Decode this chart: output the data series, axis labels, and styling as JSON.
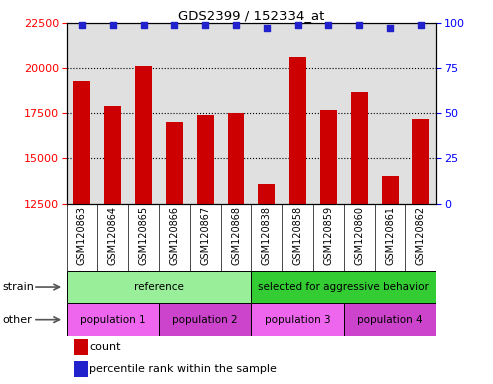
{
  "title": "GDS2399 / 152334_at",
  "samples": [
    "GSM120863",
    "GSM120864",
    "GSM120865",
    "GSM120866",
    "GSM120867",
    "GSM120868",
    "GSM120838",
    "GSM120858",
    "GSM120859",
    "GSM120860",
    "GSM120861",
    "GSM120862"
  ],
  "counts": [
    19300,
    17900,
    20100,
    17000,
    17400,
    17500,
    13600,
    20600,
    17700,
    18700,
    14000,
    17200
  ],
  "percentile_ranks": [
    99,
    99,
    99,
    99,
    99,
    99,
    97,
    99,
    99,
    99,
    97,
    99
  ],
  "ylim": [
    12500,
    22500
  ],
  "yticks": [
    12500,
    15000,
    17500,
    20000,
    22500
  ],
  "right_yticks": [
    0,
    25,
    50,
    75,
    100
  ],
  "right_ylim": [
    0,
    100
  ],
  "bar_color": "#cc0000",
  "dot_color": "#2222cc",
  "plot_bg_color": "#e0e0e0",
  "xlabel_bg_color": "#c8c8c8",
  "strain_groups": [
    {
      "label": "reference",
      "start": 0,
      "end": 6,
      "color": "#99ee99"
    },
    {
      "label": "selected for aggressive behavior",
      "start": 6,
      "end": 12,
      "color": "#33cc33"
    }
  ],
  "other_groups": [
    {
      "label": "population 1",
      "start": 0,
      "end": 3,
      "color": "#ee66ee"
    },
    {
      "label": "population 2",
      "start": 3,
      "end": 6,
      "color": "#cc44cc"
    },
    {
      "label": "population 3",
      "start": 6,
      "end": 9,
      "color": "#ee66ee"
    },
    {
      "label": "population 4",
      "start": 9,
      "end": 12,
      "color": "#cc44cc"
    }
  ],
  "strain_label": "strain",
  "other_label": "other",
  "legend_count_label": "count",
  "legend_percentile_label": "percentile rank within the sample"
}
